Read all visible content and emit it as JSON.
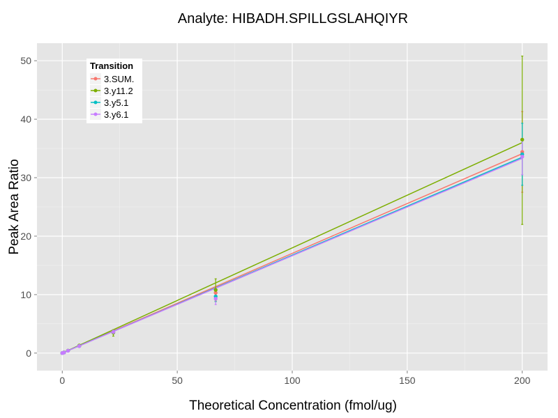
{
  "chart_data": {
    "type": "line",
    "title": "Analyte: HIBADH.SPILLGSLAHQIYR",
    "xlabel": "Theoretical Concentration (fmol/ug)",
    "ylabel": "Peak Area Ratio",
    "xlim": [
      -11,
      211
    ],
    "ylim": [
      -3,
      53
    ],
    "x_ticks": [
      0,
      50,
      100,
      150,
      200
    ],
    "x_tick_labels": [
      "0",
      "50",
      "100",
      "150",
      "200"
    ],
    "y_ticks": [
      0,
      10,
      20,
      30,
      40,
      50
    ],
    "y_tick_labels": [
      "0",
      "10",
      "20",
      "30",
      "40",
      "50"
    ],
    "grid": true,
    "legend": {
      "title": "Transition",
      "position": "top-left"
    },
    "fit_range": [
      0,
      200
    ],
    "series": [
      {
        "name": "3.SUM.",
        "color": "#F8766D",
        "fit": {
          "slope": 0.1705,
          "intercept": 0.0
        },
        "points": [
          {
            "x": 0,
            "y": 0.0
          },
          {
            "x": 0.3,
            "y": 0.05
          },
          {
            "x": 0.8,
            "y": 0.1
          },
          {
            "x": 2.5,
            "y": 0.4
          },
          {
            "x": 7.4,
            "y": 1.2
          },
          {
            "x": 22.2,
            "y": 3.6,
            "ymin": 3.3,
            "ymax": 3.9
          },
          {
            "x": 66.7,
            "y": 10.3,
            "ymin": 9.3,
            "ymax": 11.3
          },
          {
            "x": 200,
            "y": 34.4,
            "ymin": 27.5,
            "ymax": 41.3
          }
        ]
      },
      {
        "name": "3.y11.2",
        "color": "#7CAE00",
        "fit": {
          "slope": 0.18,
          "intercept": 0.0
        },
        "points": [
          {
            "x": 0,
            "y": 0.0
          },
          {
            "x": 0.3,
            "y": 0.05
          },
          {
            "x": 0.8,
            "y": 0.12
          },
          {
            "x": 2.5,
            "y": 0.42
          },
          {
            "x": 7.4,
            "y": 1.3
          },
          {
            "x": 22.2,
            "y": 3.5,
            "ymin": 2.9,
            "ymax": 4.0
          },
          {
            "x": 66.7,
            "y": 10.8,
            "ymin": 8.9,
            "ymax": 12.7
          },
          {
            "x": 200,
            "y": 36.5,
            "ymin": 22.0,
            "ymax": 50.8
          }
        ]
      },
      {
        "name": "3.y5.1",
        "color": "#00BFC4",
        "fit": {
          "slope": 0.1675,
          "intercept": 0.0
        },
        "points": [
          {
            "x": 0,
            "y": 0.0
          },
          {
            "x": 0.3,
            "y": 0.05
          },
          {
            "x": 0.8,
            "y": 0.1
          },
          {
            "x": 2.5,
            "y": 0.4
          },
          {
            "x": 7.4,
            "y": 1.2
          },
          {
            "x": 22.2,
            "y": 3.6,
            "ymin": 3.3,
            "ymax": 3.9
          },
          {
            "x": 66.7,
            "y": 9.7,
            "ymin": 8.8,
            "ymax": 10.6
          },
          {
            "x": 200,
            "y": 34.0,
            "ymin": 28.7,
            "ymax": 39.3
          }
        ]
      },
      {
        "name": "3.y6.1",
        "color": "#C77CFF",
        "fit": {
          "slope": 0.1665,
          "intercept": 0.0
        },
        "points": [
          {
            "x": 0,
            "y": 0.0
          },
          {
            "x": 0.3,
            "y": 0.05
          },
          {
            "x": 0.8,
            "y": 0.1
          },
          {
            "x": 2.5,
            "y": 0.4
          },
          {
            "x": 7.4,
            "y": 1.2
          },
          {
            "x": 22.2,
            "y": 3.6,
            "ymin": 3.3,
            "ymax": 3.9
          },
          {
            "x": 66.7,
            "y": 9.3,
            "ymin": 8.3,
            "ymax": 10.3
          },
          {
            "x": 200,
            "y": 33.6,
            "ymin": 30.5,
            "ymax": 36.7
          }
        ]
      }
    ]
  }
}
